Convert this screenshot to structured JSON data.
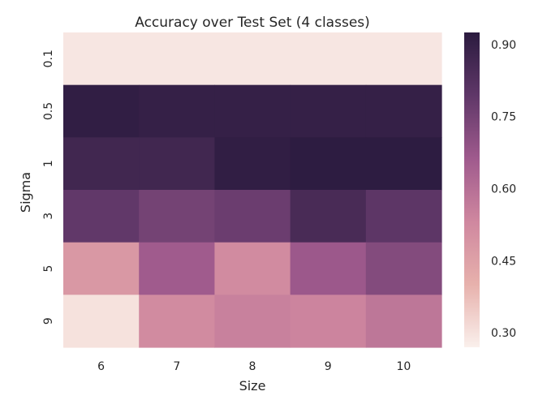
{
  "chart_data": {
    "type": "heatmap",
    "title": "Accuracy over Test Set (4 classes)",
    "xlabel": "Size",
    "ylabel": "Sigma",
    "x_categories": [
      "6",
      "7",
      "8",
      "9",
      "10"
    ],
    "y_categories": [
      "0.1",
      "0.5",
      "1",
      "3",
      "5",
      "9"
    ],
    "values": [
      [
        0.29,
        0.29,
        0.29,
        0.29,
        0.29
      ],
      [
        0.91,
        0.9,
        0.9,
        0.9,
        0.9
      ],
      [
        0.87,
        0.87,
        0.91,
        0.92,
        0.92
      ],
      [
        0.79,
        0.75,
        0.77,
        0.85,
        0.8
      ],
      [
        0.48,
        0.66,
        0.52,
        0.67,
        0.72
      ],
      [
        0.3,
        0.52,
        0.55,
        0.54,
        0.58
      ]
    ],
    "colorbar": {
      "vmin": 0.27,
      "vmax": 0.925,
      "ticks": [
        "0.30",
        "0.45",
        "0.60",
        "0.75",
        "0.90"
      ]
    },
    "colormap": [
      {
        "v": 0.0,
        "color": "#faf0ec"
      },
      {
        "v": 0.2,
        "color": "#e7b1ac"
      },
      {
        "v": 0.4,
        "color": "#cf879f"
      },
      {
        "v": 0.6,
        "color": "#9f5a8d"
      },
      {
        "v": 0.8,
        "color": "#5f3768"
      },
      {
        "v": 1.0,
        "color": "#2b1b3f"
      }
    ]
  }
}
